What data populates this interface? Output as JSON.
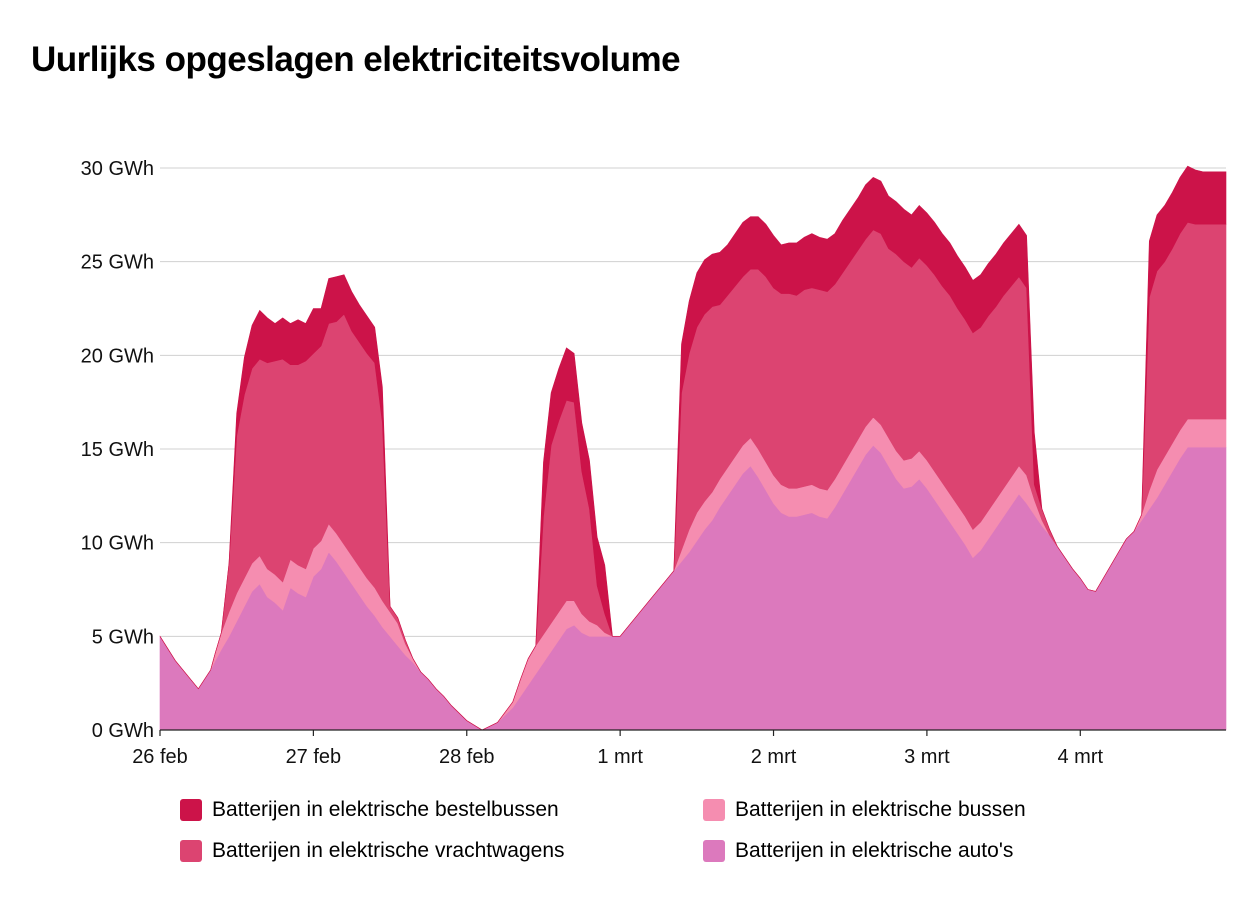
{
  "title": "Uurlijks opgeslagen elektriciteitsvolume",
  "chart_data": {
    "type": "area",
    "stacked": true,
    "title": "Uurlijks opgeslagen elektriciteitsvolume",
    "xlabel": "",
    "ylabel": "",
    "xlim": [
      0,
      6.95
    ],
    "ylim": [
      0,
      30
    ],
    "yticks": [
      0,
      5,
      10,
      15,
      20,
      25,
      30
    ],
    "ytick_labels": [
      "0 GWh",
      "5 GWh",
      "10 GWh",
      "15 GWh",
      "20 GWh",
      "25 GWh",
      "30 GWh"
    ],
    "xticks": [
      0,
      1,
      2,
      3,
      4,
      5,
      6
    ],
    "xtick_labels": [
      "26 feb",
      "27 feb",
      "28 feb",
      "1 mrt",
      "2 mrt",
      "3 mrt",
      "4 mrt"
    ],
    "grid": "horizontal",
    "legend_position": "bottom",
    "x": [
      0,
      0.1,
      0.2,
      0.25,
      0.33,
      0.36,
      0.4,
      0.45,
      0.5,
      0.55,
      0.6,
      0.65,
      0.7,
      0.75,
      0.8,
      0.85,
      0.9,
      0.95,
      1.0,
      1.05,
      1.1,
      1.15,
      1.2,
      1.25,
      1.3,
      1.35,
      1.4,
      1.45,
      1.5,
      1.55,
      1.6,
      1.65,
      1.7,
      1.75,
      1.8,
      1.85,
      1.9,
      2.0,
      2.1,
      2.2,
      2.3,
      2.35,
      2.4,
      2.45,
      2.5,
      2.55,
      2.6,
      2.65,
      2.7,
      2.75,
      2.8,
      2.85,
      2.9,
      2.95,
      3.0,
      3.1,
      3.2,
      3.3,
      3.35,
      3.4,
      3.45,
      3.5,
      3.55,
      3.6,
      3.65,
      3.7,
      3.75,
      3.8,
      3.85,
      3.9,
      3.95,
      4.0,
      4.05,
      4.1,
      4.15,
      4.2,
      4.25,
      4.3,
      4.35,
      4.4,
      4.45,
      4.5,
      4.55,
      4.6,
      4.65,
      4.7,
      4.75,
      4.8,
      4.85,
      4.9,
      4.95,
      5.0,
      5.05,
      5.1,
      5.15,
      5.2,
      5.25,
      5.3,
      5.35,
      5.4,
      5.45,
      5.5,
      5.55,
      5.6,
      5.65,
      5.7,
      5.75,
      5.8,
      5.85,
      5.9,
      5.95,
      6.0,
      6.05,
      6.1,
      6.15,
      6.2,
      6.25,
      6.3,
      6.35,
      6.4,
      6.45,
      6.5,
      6.55,
      6.6,
      6.65,
      6.7,
      6.75,
      6.8,
      6.85,
      6.9,
      6.95
    ],
    "series": [
      {
        "name": "Batterijen in elektrische auto's",
        "color": "#dc79bd",
        "values": [
          5.0,
          3.7,
          2.7,
          2.2,
          3.2,
          3.7,
          4.3,
          5.0,
          5.8,
          6.6,
          7.4,
          7.8,
          7.1,
          6.8,
          6.4,
          7.6,
          7.3,
          7.1,
          8.2,
          8.6,
          9.5,
          9.0,
          8.4,
          7.8,
          7.2,
          6.6,
          6.1,
          5.5,
          5.0,
          4.5,
          4.0,
          3.6,
          3.1,
          2.7,
          2.2,
          1.8,
          1.3,
          0.5,
          0.0,
          0.4,
          1.2,
          1.8,
          2.4,
          3.0,
          3.6,
          4.2,
          4.8,
          5.4,
          5.6,
          5.2,
          5.0,
          5.0,
          5.0,
          5.0,
          5.0,
          6.0,
          7.0,
          8.0,
          8.5,
          9.0,
          9.5,
          10.1,
          10.7,
          11.2,
          11.9,
          12.5,
          13.1,
          13.7,
          14.1,
          13.5,
          12.8,
          12.1,
          11.6,
          11.4,
          11.4,
          11.5,
          11.6,
          11.4,
          11.3,
          11.9,
          12.6,
          13.3,
          14.0,
          14.7,
          15.2,
          14.8,
          14.1,
          13.4,
          12.9,
          13.0,
          13.4,
          12.9,
          12.3,
          11.7,
          11.1,
          10.5,
          9.9,
          9.2,
          9.6,
          10.2,
          10.8,
          11.4,
          12.0,
          12.6,
          12.1,
          11.5,
          10.9,
          10.4,
          9.8,
          9.2,
          8.6,
          8.1,
          7.5,
          7.4,
          8.1,
          8.8,
          9.5,
          10.2,
          10.6,
          11.2,
          11.8,
          12.4,
          13.1,
          13.8,
          14.5,
          15.1,
          15.1,
          15.1,
          15.1,
          15.1,
          15.1
        ]
      },
      {
        "name": "Batterijen in elektrische bussen",
        "color": "#f58db0",
        "values": [
          0.0,
          0.0,
          0.0,
          0.0,
          0.0,
          0.4,
          0.9,
          1.3,
          1.5,
          1.5,
          1.5,
          1.5,
          1.5,
          1.5,
          1.5,
          1.5,
          1.5,
          1.5,
          1.5,
          1.5,
          1.5,
          1.5,
          1.5,
          1.5,
          1.5,
          1.5,
          1.5,
          1.4,
          1.3,
          1.2,
          0.6,
          0.2,
          0.0,
          0.0,
          0.0,
          0.0,
          0.0,
          0.0,
          0.0,
          0.0,
          0.3,
          0.9,
          1.4,
          1.5,
          1.5,
          1.5,
          1.5,
          1.5,
          1.3,
          1.0,
          0.8,
          0.6,
          0.2,
          0.0,
          0.0,
          0.0,
          0.0,
          0.0,
          0.0,
          0.6,
          1.2,
          1.5,
          1.5,
          1.5,
          1.5,
          1.5,
          1.5,
          1.5,
          1.5,
          1.5,
          1.5,
          1.5,
          1.5,
          1.5,
          1.5,
          1.5,
          1.5,
          1.5,
          1.5,
          1.5,
          1.5,
          1.5,
          1.5,
          1.5,
          1.5,
          1.5,
          1.5,
          1.5,
          1.5,
          1.5,
          1.5,
          1.5,
          1.5,
          1.5,
          1.5,
          1.5,
          1.5,
          1.5,
          1.5,
          1.5,
          1.5,
          1.5,
          1.5,
          1.5,
          1.5,
          0.8,
          0.3,
          0.0,
          0.0,
          0.0,
          0.0,
          0.0,
          0.0,
          0.0,
          0.0,
          0.0,
          0.0,
          0.0,
          0.0,
          0.3,
          1.0,
          1.5,
          1.5,
          1.5,
          1.5,
          1.5,
          1.5,
          1.5,
          1.5,
          1.5,
          1.5
        ]
      },
      {
        "name": "Batterijen in elektrische vrachtwagens",
        "color": "#dc4471",
        "values": [
          0.0,
          0.0,
          0.0,
          0.0,
          0.0,
          0.0,
          0.0,
          2.6,
          8.4,
          9.8,
          10.4,
          10.5,
          11.0,
          11.4,
          11.9,
          10.4,
          10.7,
          11.1,
          10.4,
          10.4,
          10.7,
          11.3,
          12.3,
          12.0,
          12.0,
          12.0,
          12.0,
          9.5,
          0.3,
          0.3,
          0.2,
          0.0,
          0.0,
          0.0,
          0.0,
          0.0,
          0.0,
          0.0,
          0.0,
          0.0,
          0.0,
          0.0,
          0.0,
          0.0,
          6.3,
          9.5,
          10.2,
          10.7,
          10.6,
          7.6,
          6.0,
          2.1,
          1.0,
          0.0,
          0.0,
          0.0,
          0.0,
          0.0,
          0.0,
          8.4,
          9.4,
          9.9,
          10.0,
          9.9,
          9.3,
          9.2,
          9.1,
          9.0,
          9.0,
          9.6,
          9.9,
          10.0,
          10.2,
          10.4,
          10.3,
          10.5,
          10.5,
          10.6,
          10.6,
          10.4,
          10.3,
          10.2,
          10.1,
          10.0,
          10.0,
          10.2,
          10.1,
          10.5,
          10.6,
          10.2,
          10.3,
          10.4,
          10.5,
          10.5,
          10.6,
          10.5,
          10.5,
          10.5,
          10.4,
          10.4,
          10.3,
          10.3,
          10.2,
          10.1,
          10.0,
          0.8,
          0.6,
          0.3,
          0.0,
          0.0,
          0.0,
          0.0,
          0.0,
          0.0,
          0.0,
          0.0,
          0.0,
          0.0,
          0.0,
          0.0,
          10.3,
          10.6,
          10.4,
          10.4,
          10.5,
          10.5,
          10.4,
          10.4,
          10.4,
          10.4,
          10.4
        ]
      },
      {
        "name": "Batterijen in elektrische bestelbussen",
        "color": "#cc1349",
        "values": [
          0.0,
          0.0,
          0.0,
          0.0,
          0.0,
          0.0,
          0.0,
          0.0,
          1.2,
          2.0,
          2.3,
          2.6,
          2.4,
          2.0,
          2.2,
          2.2,
          2.4,
          2.0,
          2.4,
          2.0,
          2.4,
          2.4,
          2.1,
          2.1,
          2.0,
          2.0,
          1.9,
          1.9,
          0.0,
          0.0,
          0.0,
          0.0,
          0.0,
          0.0,
          0.0,
          0.0,
          0.0,
          0.0,
          0.0,
          0.0,
          0.0,
          0.0,
          0.0,
          0.0,
          2.9,
          2.8,
          2.8,
          2.8,
          2.6,
          2.6,
          2.6,
          2.6,
          2.6,
          0.0,
          0.0,
          0.0,
          0.0,
          0.0,
          0.0,
          2.6,
          2.8,
          2.9,
          2.9,
          2.8,
          2.8,
          2.7,
          2.8,
          2.9,
          2.8,
          2.8,
          2.8,
          2.8,
          2.6,
          2.7,
          2.8,
          2.8,
          2.9,
          2.8,
          2.8,
          2.7,
          2.8,
          2.8,
          2.8,
          2.9,
          2.8,
          2.8,
          2.8,
          2.8,
          2.8,
          2.8,
          2.8,
          2.8,
          2.8,
          2.8,
          2.8,
          2.8,
          2.8,
          2.8,
          2.8,
          2.8,
          2.8,
          2.8,
          2.8,
          2.8,
          2.8,
          2.8,
          0.0,
          0.0,
          0.0,
          0.0,
          0.0,
          0.0,
          0.0,
          0.0,
          0.0,
          0.0,
          0.0,
          0.0,
          0.0,
          0.0,
          3.0,
          3.0,
          3.0,
          3.0,
          3.0,
          3.0,
          2.9,
          2.8,
          2.8,
          2.8,
          2.8
        ]
      }
    ]
  },
  "legend": [
    {
      "label": "Batterijen in elektrische bestelbussen",
      "color": "#cc1349"
    },
    {
      "label": "Batterijen in elektrische bussen",
      "color": "#f58db0"
    },
    {
      "label": "Batterijen in elektrische vrachtwagens",
      "color": "#dc4471"
    },
    {
      "label": "Batterijen in elektrische auto's",
      "color": "#dc79bd"
    }
  ]
}
